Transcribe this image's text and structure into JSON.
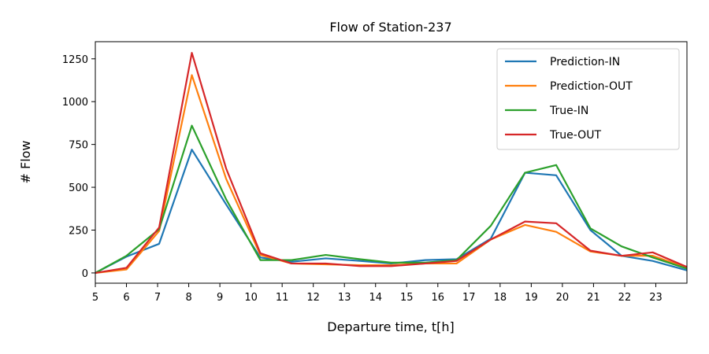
{
  "chart_data": {
    "type": "line",
    "title": "Flow of Station-237",
    "xlabel": "Departure time, t[h]",
    "ylabel": "# Flow",
    "xlim": [
      5,
      24
    ],
    "ylim": [
      -60,
      1350
    ],
    "xticks": [
      5,
      6,
      7,
      8,
      9,
      10,
      11,
      12,
      13,
      14,
      15,
      16,
      17,
      18,
      19,
      20,
      21,
      22,
      23
    ],
    "yticks": [
      0,
      250,
      500,
      750,
      1000,
      1250
    ],
    "grid": false,
    "legend_position": "top-right",
    "x": [
      5,
      6,
      7.05,
      8.1,
      9.2,
      10.3,
      11.3,
      12.4,
      13.5,
      14.5,
      15.6,
      16.6,
      17.7,
      18.8,
      19.8,
      20.9,
      21.9,
      22.9,
      24
    ],
    "series": [
      {
        "name": "Prediction-IN",
        "color": "#1f77b4",
        "values": [
          0,
          95,
          170,
          720,
          400,
          90,
          65,
          85,
          70,
          55,
          75,
          80,
          200,
          585,
          570,
          250,
          100,
          70,
          15
        ]
      },
      {
        "name": "Prediction-OUT",
        "color": "#ff7f0e",
        "values": [
          0,
          20,
          245,
          1155,
          550,
          105,
          55,
          50,
          45,
          45,
          55,
          55,
          195,
          280,
          240,
          125,
          100,
          100,
          30
        ]
      },
      {
        "name": "True-IN",
        "color": "#2ca02c",
        "values": [
          0,
          100,
          255,
          860,
          430,
          75,
          75,
          105,
          80,
          60,
          60,
          75,
          275,
          585,
          630,
          260,
          155,
          90,
          25
        ]
      },
      {
        "name": "True-OUT",
        "color": "#d62728",
        "values": [
          0,
          30,
          265,
          1285,
          610,
          115,
          55,
          55,
          40,
          40,
          55,
          70,
          195,
          300,
          290,
          130,
          100,
          120,
          35
        ]
      }
    ]
  }
}
